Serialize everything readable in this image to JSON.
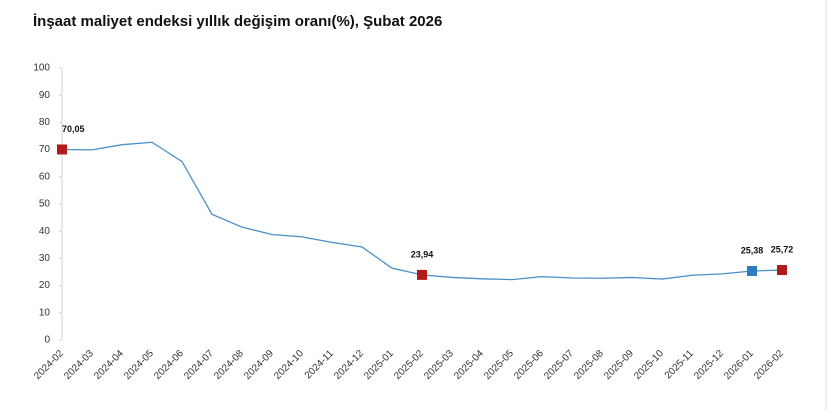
{
  "chart_data": {
    "type": "line",
    "title": "İnşaat maliyet endeksi yıllık değişim oranı(%), Şubat 2026",
    "categories": [
      "2024-02",
      "2024-03",
      "2024-04",
      "2024-05",
      "2024-06",
      "2024-07",
      "2024-08",
      "2024-09",
      "2024-10",
      "2024-11",
      "2024-12",
      "2025-01",
      "2025-02",
      "2025-03",
      "2025-04",
      "2025-05",
      "2025-06",
      "2025-07",
      "2025-08",
      "2025-09",
      "2025-10",
      "2025-11",
      "2025-12",
      "2026-01",
      "2026-02"
    ],
    "series": [
      {
        "color": "#4a90c8",
        "values": [
          70.05,
          69.9,
          71.8,
          72.7,
          65.6,
          46.2,
          41.5,
          38.8,
          37.9,
          35.9,
          34.2,
          26.4,
          23.94,
          23.0,
          22.5,
          22.2,
          23.3,
          22.8,
          22.7,
          23.0,
          22.4,
          23.8,
          24.3,
          25.38,
          25.72
        ],
        "value_labels": [
          "70,05",
          null,
          null,
          null,
          null,
          null,
          null,
          null,
          null,
          null,
          null,
          null,
          "23,94",
          null,
          null,
          null,
          null,
          null,
          null,
          null,
          null,
          null,
          null,
          "25,38",
          "25,72"
        ],
        "marker_colors": [
          "#b01c1c",
          null,
          null,
          null,
          null,
          null,
          null,
          null,
          null,
          null,
          null,
          null,
          "#b01c1c",
          null,
          null,
          null,
          null,
          null,
          null,
          null,
          null,
          null,
          null,
          "#2f7bbf",
          "#b01c1c"
        ]
      }
    ],
    "ylim": [
      0,
      100
    ],
    "yticks": [
      0,
      10,
      20,
      30,
      40,
      50,
      60,
      70,
      80,
      90,
      100
    ],
    "grid": false
  }
}
